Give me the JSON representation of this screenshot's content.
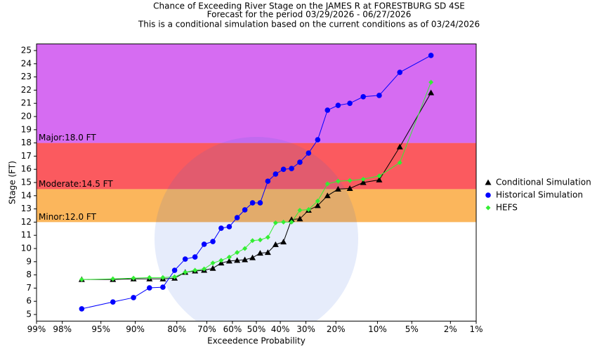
{
  "chart_data": {
    "type": "line",
    "title": "Chance of Exceeding River Stage on the JAMES R at FORESTBURG SD 4SE",
    "subtitle": [
      "Forecast for the period 03/29/2026 - 06/27/2026",
      "This is a conditional simulation based on the current conditions as of 03/24/2026"
    ],
    "x_label": "Exceedence Probability",
    "y_label": "Stage (FT)",
    "x_scale": "probability",
    "xlim": [
      99,
      1
    ],
    "xticks": [
      {
        "value": 99,
        "label": "99%"
      },
      {
        "value": 98,
        "label": "98%"
      },
      {
        "value": 95,
        "label": "95%"
      },
      {
        "value": 90,
        "label": "90%"
      },
      {
        "value": 80,
        "label": "80%"
      },
      {
        "value": 70,
        "label": "70%"
      },
      {
        "value": 60,
        "label": "60%"
      },
      {
        "value": 50,
        "label": "50%"
      },
      {
        "value": 40,
        "label": "40%"
      },
      {
        "value": 30,
        "label": "30%"
      },
      {
        "value": 20,
        "label": "20%"
      },
      {
        "value": 10,
        "label": "10%"
      },
      {
        "value": 5,
        "label": "5%"
      },
      {
        "value": 2,
        "label": "2%"
      },
      {
        "value": 1,
        "label": "1%"
      }
    ],
    "ylim": [
      4.5,
      25.5
    ],
    "yticks": [
      5,
      6,
      7,
      8,
      9,
      10,
      11,
      12,
      13,
      14,
      15,
      16,
      17,
      18,
      19,
      20,
      21,
      22,
      23,
      24,
      25
    ],
    "grid": false,
    "legend_position": "right",
    "flood_stages": [
      {
        "label": "Minor:12.0 FT",
        "value": 12.0,
        "color": "#fbb65c"
      },
      {
        "label": "Moderate:14.5 FT",
        "value": 14.5,
        "color": "#fb5a5f"
      },
      {
        "label": "Major:18.0 FT",
        "value": 18.0,
        "color": "#d66cf2"
      }
    ],
    "x": [
      96.77,
      93.55,
      90.32,
      87.1,
      83.87,
      80.65,
      77.42,
      74.19,
      70.97,
      67.74,
      64.52,
      61.29,
      58.06,
      54.84,
      51.61,
      48.39,
      45.16,
      41.94,
      38.71,
      35.48,
      32.26,
      29.03,
      25.81,
      22.58,
      19.35,
      16.13,
      12.9,
      9.68,
      6.45,
      3.23
    ],
    "series": [
      {
        "name": "Conditional Simulation",
        "color": "#000000",
        "marker": "triangle",
        "values": [
          7.65,
          7.65,
          7.7,
          7.7,
          7.7,
          7.75,
          8.2,
          8.3,
          8.35,
          8.5,
          8.9,
          9.05,
          9.1,
          9.15,
          9.3,
          9.65,
          9.7,
          10.3,
          10.5,
          12.2,
          12.25,
          12.9,
          13.25,
          14.0,
          14.5,
          14.55,
          15.0,
          15.2,
          17.7,
          21.8
        ]
      },
      {
        "name": "Historical Simulation",
        "color": "#0000ff",
        "marker": "circle",
        "values": [
          5.43,
          5.95,
          6.28,
          7.02,
          7.07,
          8.35,
          9.2,
          9.36,
          10.32,
          10.53,
          11.54,
          11.65,
          12.34,
          12.93,
          13.46,
          13.46,
          15.1,
          15.64,
          16.0,
          16.06,
          16.54,
          17.23,
          18.24,
          20.48,
          20.85,
          21.0,
          21.5,
          21.6,
          23.35,
          24.63
        ]
      },
      {
        "name": "HEFS",
        "color": "#33ee33",
        "marker": "diamond",
        "values": [
          7.65,
          7.7,
          7.75,
          7.8,
          7.8,
          7.85,
          8.2,
          8.35,
          8.45,
          8.9,
          9.1,
          9.35,
          9.7,
          10.0,
          10.6,
          10.65,
          10.85,
          11.95,
          12.0,
          12.0,
          12.9,
          12.95,
          13.6,
          14.9,
          15.1,
          15.15,
          15.25,
          15.5,
          16.5,
          22.6
        ]
      }
    ]
  }
}
